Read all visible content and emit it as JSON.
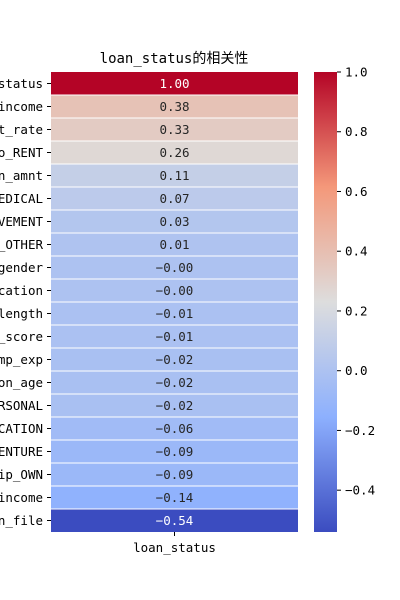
{
  "chart_data": {
    "type": "heatmap",
    "title": "loan_status的相关性",
    "x_categories": [
      "loan_status"
    ],
    "y_categories": [
      "status",
      "income",
      "t_rate",
      "o_RENT",
      "n_amnt",
      "EDICAL",
      "VEMENT",
      "_OTHER",
      "gender",
      "cation",
      "length",
      "_score",
      "mp_exp",
      "on_age",
      "RSONAL",
      "CATION",
      "ENTURE",
      "ip_OWN",
      "income",
      "n_file"
    ],
    "values": [
      1.0,
      0.38,
      0.33,
      0.26,
      0.11,
      0.07,
      0.03,
      0.01,
      -0.0,
      -0.0,
      -0.01,
      -0.01,
      -0.02,
      -0.02,
      -0.02,
      -0.06,
      -0.09,
      -0.09,
      -0.14,
      -0.54
    ],
    "value_labels": [
      "1.00",
      "0.38",
      "0.33",
      "0.26",
      "0.11",
      "0.07",
      "0.03",
      "0.01",
      "-0.00",
      "-0.00",
      "-0.01",
      "-0.01",
      "-0.02",
      "-0.02",
      "-0.02",
      "-0.06",
      "-0.09",
      "-0.09",
      "-0.14",
      "-0.54"
    ],
    "colormap": "coolwarm",
    "colorbar": {
      "range": [
        -0.54,
        1.0
      ],
      "ticks": [
        1.0,
        0.8,
        0.6,
        0.4,
        0.2,
        0.0,
        -0.2,
        -0.4
      ],
      "tick_labels": [
        "1.0",
        "0.8",
        "0.6",
        "0.4",
        "0.2",
        "0.0",
        "−0.2",
        "−0.4"
      ]
    },
    "xlabel": "",
    "ylabel": ""
  }
}
